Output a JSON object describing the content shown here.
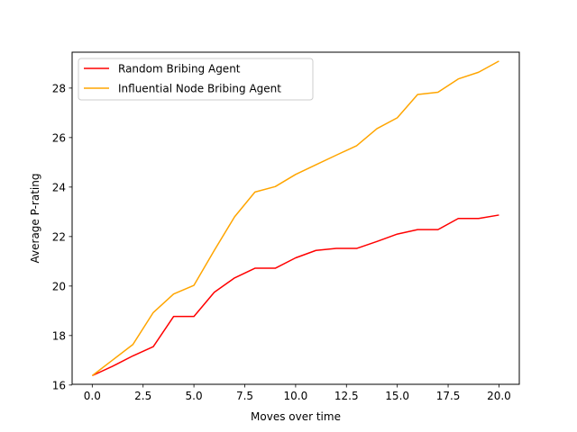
{
  "chart_data": {
    "type": "line",
    "title": "",
    "xlabel": "Moves over time",
    "ylabel": "Average P-rating",
    "xlim": [
      -0.99,
      21.0
    ],
    "ylim": [
      16.03,
      29.45
    ],
    "xticks": [
      0.0,
      2.5,
      5.0,
      7.5,
      10.0,
      12.5,
      15.0,
      17.5,
      20.0
    ],
    "xtick_labels": [
      "0.0",
      "2.5",
      "5.0",
      "7.5",
      "10.0",
      "12.5",
      "15.0",
      "17.5",
      "20.0"
    ],
    "yticks": [
      16,
      18,
      20,
      22,
      24,
      26,
      28
    ],
    "ytick_labels": [
      "16",
      "18",
      "20",
      "22",
      "24",
      "26",
      "28"
    ],
    "grid": false,
    "legend_position": "top-left",
    "x": [
      0,
      1,
      2,
      3,
      4,
      5,
      6,
      7,
      8,
      9,
      10,
      11,
      12,
      13,
      14,
      15,
      16,
      17,
      18,
      19,
      20
    ],
    "series": [
      {
        "name": "Random Bribing Agent",
        "color": "#ff0000",
        "values": [
          16.38,
          16.76,
          17.18,
          17.55,
          18.77,
          18.77,
          19.75,
          20.33,
          20.72,
          20.72,
          21.14,
          21.44,
          21.52,
          21.52,
          21.8,
          22.1,
          22.28,
          22.28,
          22.73,
          22.73,
          22.87
        ]
      },
      {
        "name": "Influential Node Bribing Agent",
        "color": "#ffa500",
        "values": [
          16.38,
          17.01,
          17.64,
          18.93,
          19.68,
          20.03,
          21.44,
          22.8,
          23.8,
          24.02,
          24.51,
          24.9,
          25.29,
          25.67,
          26.36,
          26.8,
          27.74,
          27.83,
          28.37,
          28.64,
          29.09
        ]
      }
    ]
  }
}
